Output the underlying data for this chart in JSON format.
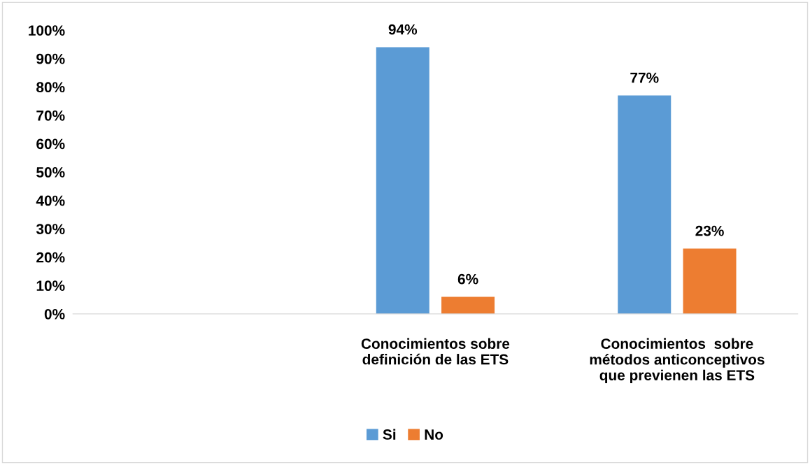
{
  "chart_data": {
    "type": "bar",
    "categories": [
      null,
      "Conocimientos sobre\ndefinición de las ETS",
      "Conocimientos  sobre\nmétodos anticonceptivos\nque previenen las ETS"
    ],
    "series": [
      {
        "name": "Si",
        "color": "#5b9bd5",
        "values": [
          null,
          94,
          77
        ]
      },
      {
        "name": "No",
        "color": "#ed7d31",
        "values": [
          null,
          6,
          23
        ]
      }
    ],
    "ylim": [
      0,
      100
    ],
    "yticks": [
      {
        "value": 0,
        "label": "0%"
      },
      {
        "value": 10,
        "label": "10%"
      },
      {
        "value": 20,
        "label": "20%"
      },
      {
        "value": 30,
        "label": "30%"
      },
      {
        "value": 40,
        "label": "40%"
      },
      {
        "value": 50,
        "label": "50%"
      },
      {
        "value": 60,
        "label": "60%"
      },
      {
        "value": 70,
        "label": "70%"
      },
      {
        "value": 80,
        "label": "80%"
      },
      {
        "value": 90,
        "label": "90%"
      },
      {
        "value": 100,
        "label": "100%"
      }
    ],
    "value_labels": [
      [
        null,
        "94%",
        "77%"
      ],
      [
        null,
        "6%",
        "23%"
      ]
    ],
    "grid": false,
    "legend": "bottom"
  }
}
